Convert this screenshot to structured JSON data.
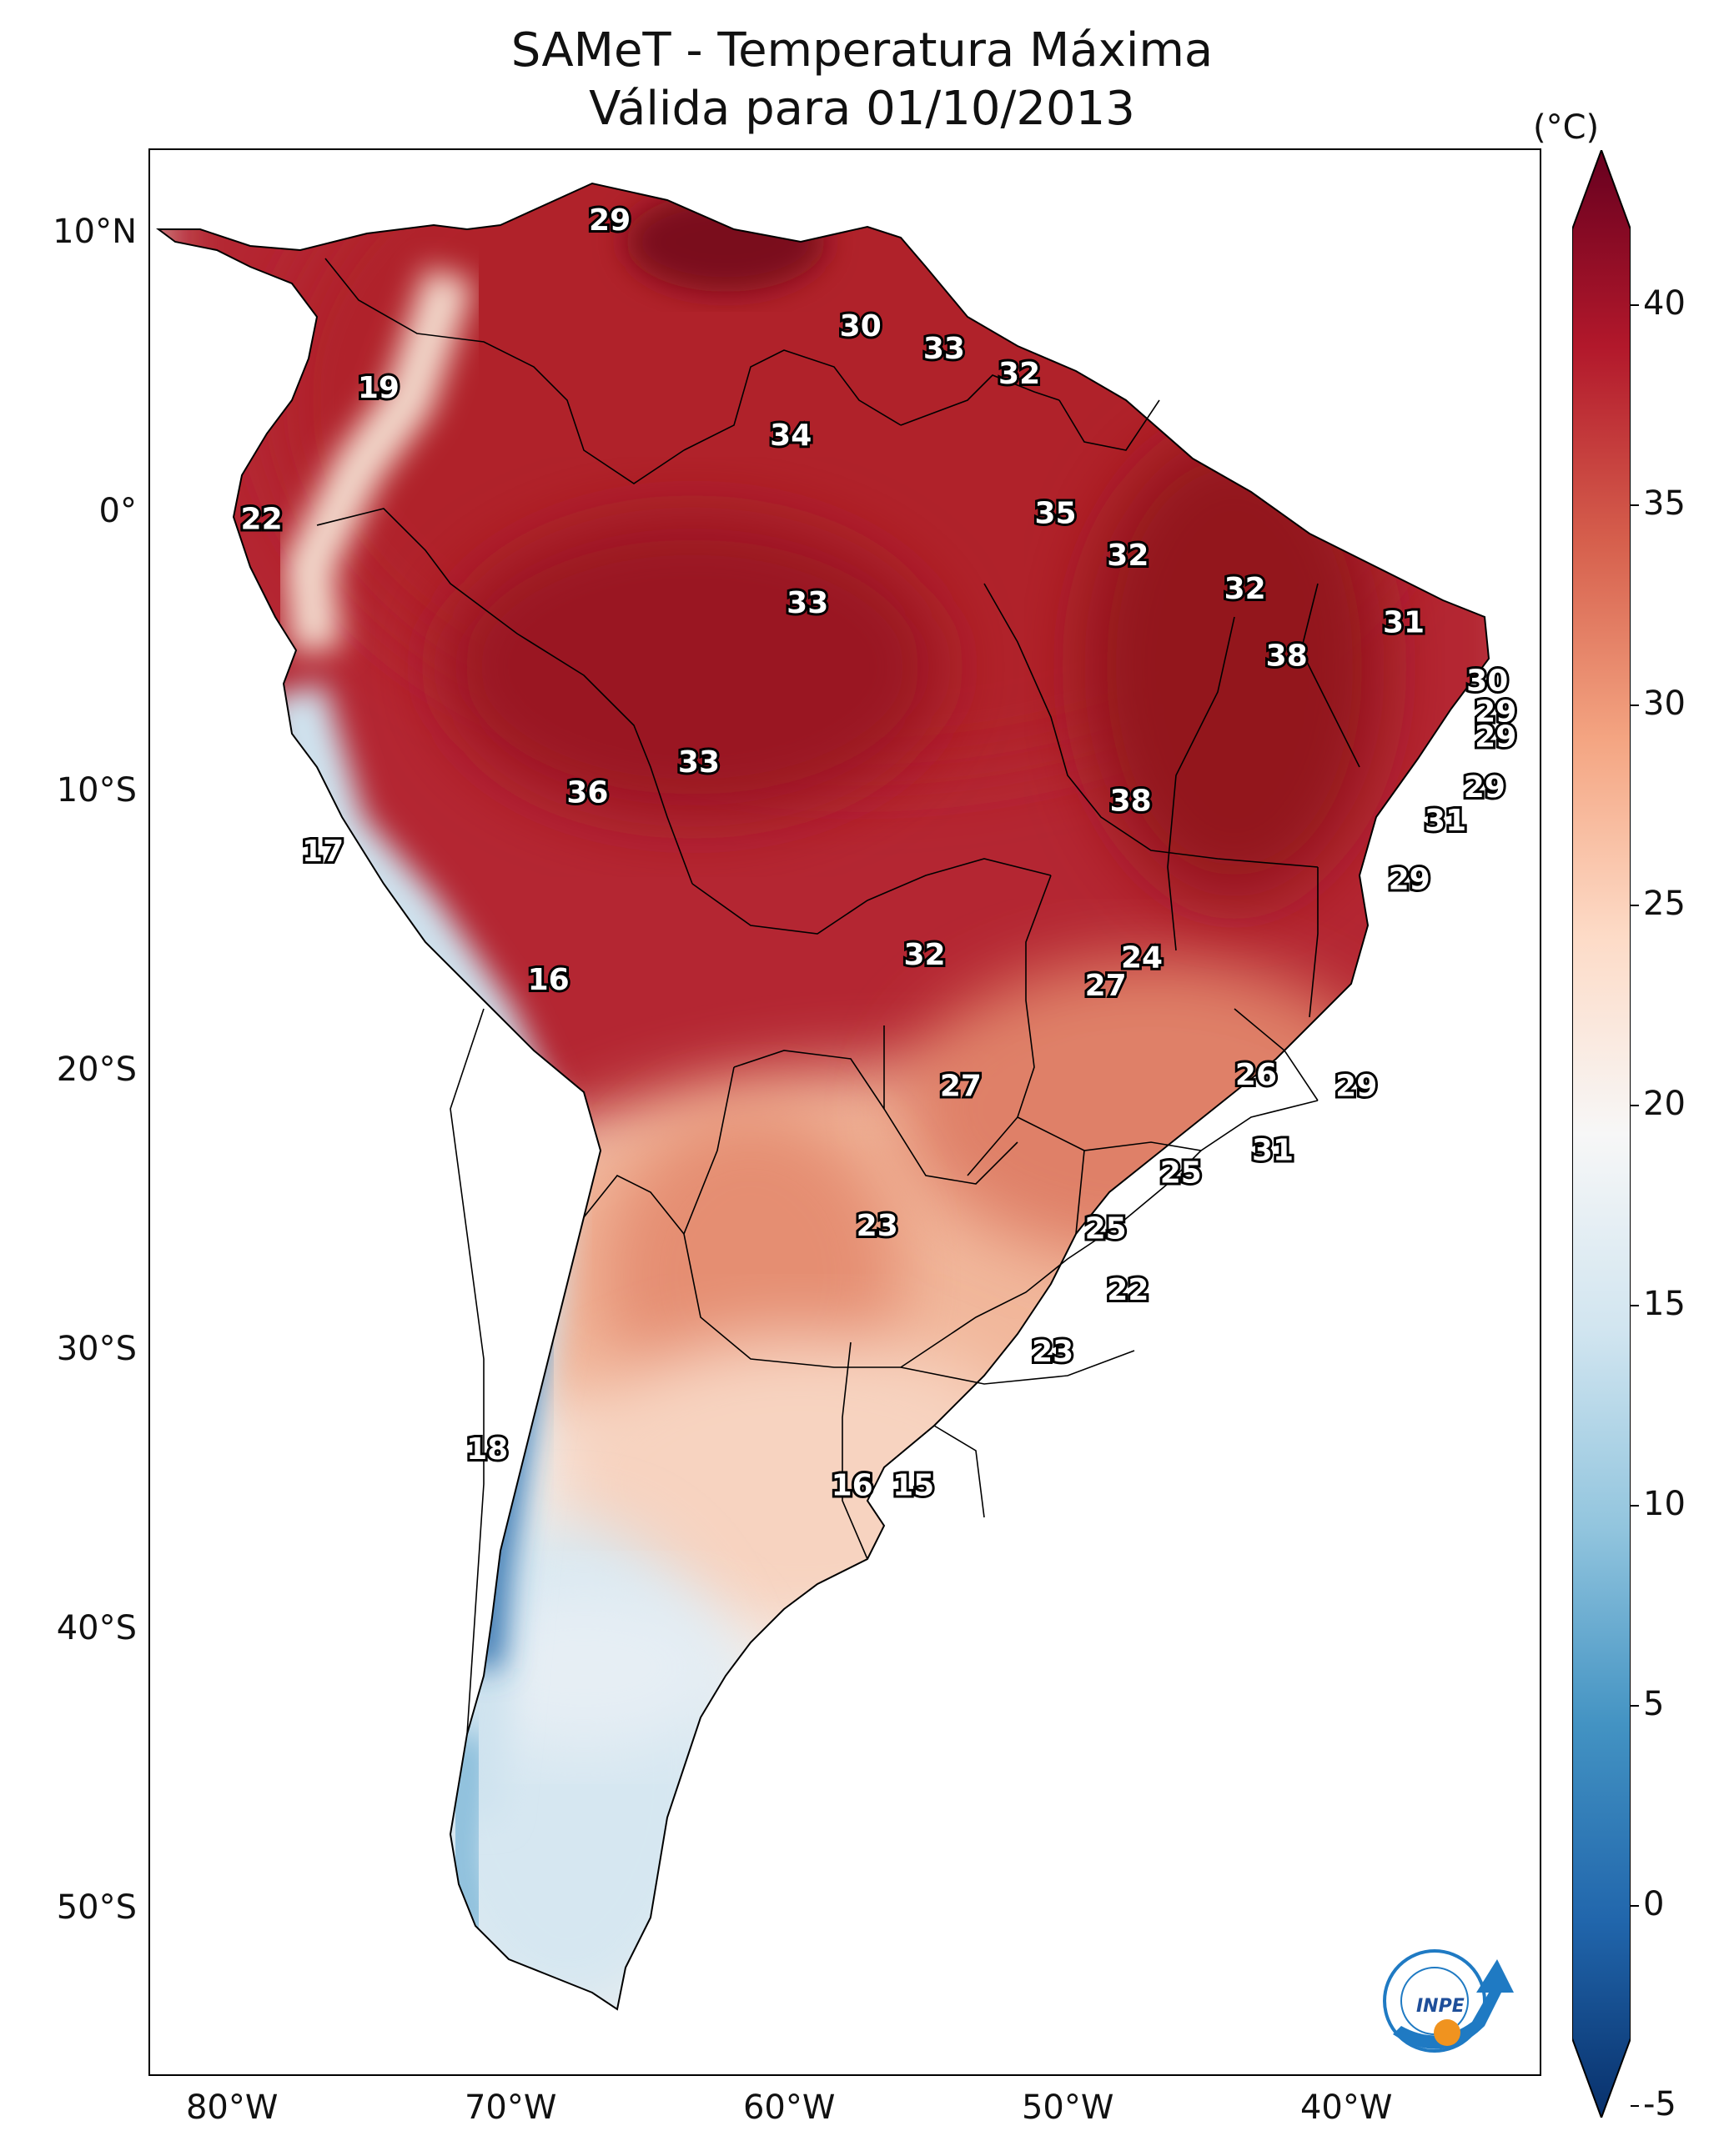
{
  "title": {
    "line1": "SAMeT - Temperatura Máxima",
    "line2": "Válida para 01/10/2013"
  },
  "colorbar": {
    "unit": "(°C)",
    "ticks": [
      "40",
      "35",
      "30",
      "25",
      "20",
      "15",
      "10",
      "5",
      "0",
      "-5"
    ],
    "min": -7,
    "max": 42,
    "colormap": "RdBu_r",
    "colors": [
      "#08306b",
      "#2166ac",
      "#4393c3",
      "#92c5de",
      "#d1e5f0",
      "#f7f7f7",
      "#fddbc7",
      "#f4a582",
      "#d6604d",
      "#b2182b",
      "#67001f"
    ]
  },
  "axes": {
    "lat_labels": [
      "10°N",
      "0°",
      "10°S",
      "20°S",
      "30°S",
      "40°S",
      "50°S"
    ],
    "lon_labels": [
      "80°W",
      "70°W",
      "60°W",
      "50°W",
      "40°W"
    ],
    "lat_range": [
      -56,
      13
    ],
    "lon_range": [
      -83,
      -33
    ]
  },
  "annotations": [
    {
      "text": "29",
      "lon": -66.5,
      "lat": 10.5
    },
    {
      "text": "30",
      "lon": -57.5,
      "lat": 6.7
    },
    {
      "text": "33",
      "lon": -54.5,
      "lat": 5.9
    },
    {
      "text": "32",
      "lon": -51.8,
      "lat": 5.0
    },
    {
      "text": "19",
      "lon": -74.8,
      "lat": 4.5
    },
    {
      "text": "34",
      "lon": -60.0,
      "lat": 2.8
    },
    {
      "text": "22",
      "lon": -79.0,
      "lat": -0.2
    },
    {
      "text": "35",
      "lon": -50.5,
      "lat": 0.0
    },
    {
      "text": "32",
      "lon": -47.9,
      "lat": -1.5
    },
    {
      "text": "33",
      "lon": -59.4,
      "lat": -3.2
    },
    {
      "text": "32",
      "lon": -43.7,
      "lat": -2.7
    },
    {
      "text": "31",
      "lon": -38.0,
      "lat": -3.9
    },
    {
      "text": "38",
      "lon": -42.2,
      "lat": -5.1
    },
    {
      "text": "30",
      "lon": -35.0,
      "lat": -6.0
    },
    {
      "text": "29",
      "lon": -34.7,
      "lat": -7.1
    },
    {
      "text": "29",
      "lon": -34.7,
      "lat": -8.0
    },
    {
      "text": "33",
      "lon": -63.3,
      "lat": -8.9
    },
    {
      "text": "36",
      "lon": -67.3,
      "lat": -10.0
    },
    {
      "text": "38",
      "lon": -47.8,
      "lat": -10.3
    },
    {
      "text": "29",
      "lon": -35.1,
      "lat": -9.8
    },
    {
      "text": "31",
      "lon": -36.5,
      "lat": -11.0
    },
    {
      "text": "17",
      "lon": -76.8,
      "lat": -12.1
    },
    {
      "text": "29",
      "lon": -37.8,
      "lat": -13.1
    },
    {
      "text": "32",
      "lon": -55.2,
      "lat": -15.8
    },
    {
      "text": "24",
      "lon": -47.4,
      "lat": -15.9
    },
    {
      "text": "27",
      "lon": -48.7,
      "lat": -16.9
    },
    {
      "text": "16",
      "lon": -68.7,
      "lat": -16.7
    },
    {
      "text": "26",
      "lon": -43.3,
      "lat": -20.1
    },
    {
      "text": "29",
      "lon": -39.7,
      "lat": -20.5
    },
    {
      "text": "27",
      "lon": -53.9,
      "lat": -20.5
    },
    {
      "text": "31",
      "lon": -42.7,
      "lat": -22.8
    },
    {
      "text": "25",
      "lon": -46.0,
      "lat": -23.6
    },
    {
      "text": "23",
      "lon": -56.9,
      "lat": -25.5
    },
    {
      "text": "25",
      "lon": -48.7,
      "lat": -25.6
    },
    {
      "text": "22",
      "lon": -47.9,
      "lat": -27.8
    },
    {
      "text": "23",
      "lon": -50.6,
      "lat": -30.0
    },
    {
      "text": "18",
      "lon": -70.9,
      "lat": -33.5
    },
    {
      "text": "16",
      "lon": -57.8,
      "lat": -34.8
    },
    {
      "text": "15",
      "lon": -55.6,
      "lat": -34.8
    }
  ]
}
